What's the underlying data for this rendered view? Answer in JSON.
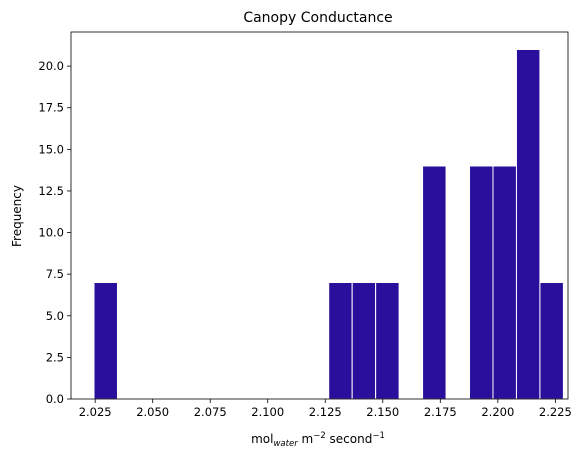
{
  "chart_data": {
    "type": "bar",
    "title": "Canopy Conductance",
    "xlabel": {
      "base": "mol",
      "subscript": "water",
      "middle": " m",
      "sup1": "−2",
      "suffix": " second",
      "sup2": "−1"
    },
    "ylabel": "Frequency",
    "bar_color": "#2a0f9c",
    "edge_color": "#ffffff",
    "bin_width": 0.0102,
    "xlim": [
      2.0145,
      2.2305
    ],
    "ylim": [
      0,
      22.05
    ],
    "xticks": [
      2.025,
      2.05,
      2.075,
      2.1,
      2.125,
      2.15,
      2.175,
      2.2,
      2.225
    ],
    "xtick_labels": [
      "2.025",
      "2.050",
      "2.075",
      "2.100",
      "2.125",
      "2.150",
      "2.175",
      "2.200",
      "2.225"
    ],
    "yticks": [
      0,
      2.5,
      5,
      7.5,
      10,
      12.5,
      15,
      17.5,
      20
    ],
    "ytick_labels": [
      "0.0",
      "2.5",
      "5.0",
      "7.5",
      "10.0",
      "12.5",
      "15.0",
      "17.5",
      "20.0"
    ],
    "bins": [
      {
        "start": 2.0245,
        "count": 7
      },
      {
        "start": 2.1265,
        "count": 7
      },
      {
        "start": 2.1367,
        "count": 7
      },
      {
        "start": 2.1469,
        "count": 7
      },
      {
        "start": 2.1673,
        "count": 14
      },
      {
        "start": 2.1877,
        "count": 14
      },
      {
        "start": 2.1979,
        "count": 14
      },
      {
        "start": 2.2081,
        "count": 21
      },
      {
        "start": 2.2183,
        "count": 7
      }
    ]
  }
}
